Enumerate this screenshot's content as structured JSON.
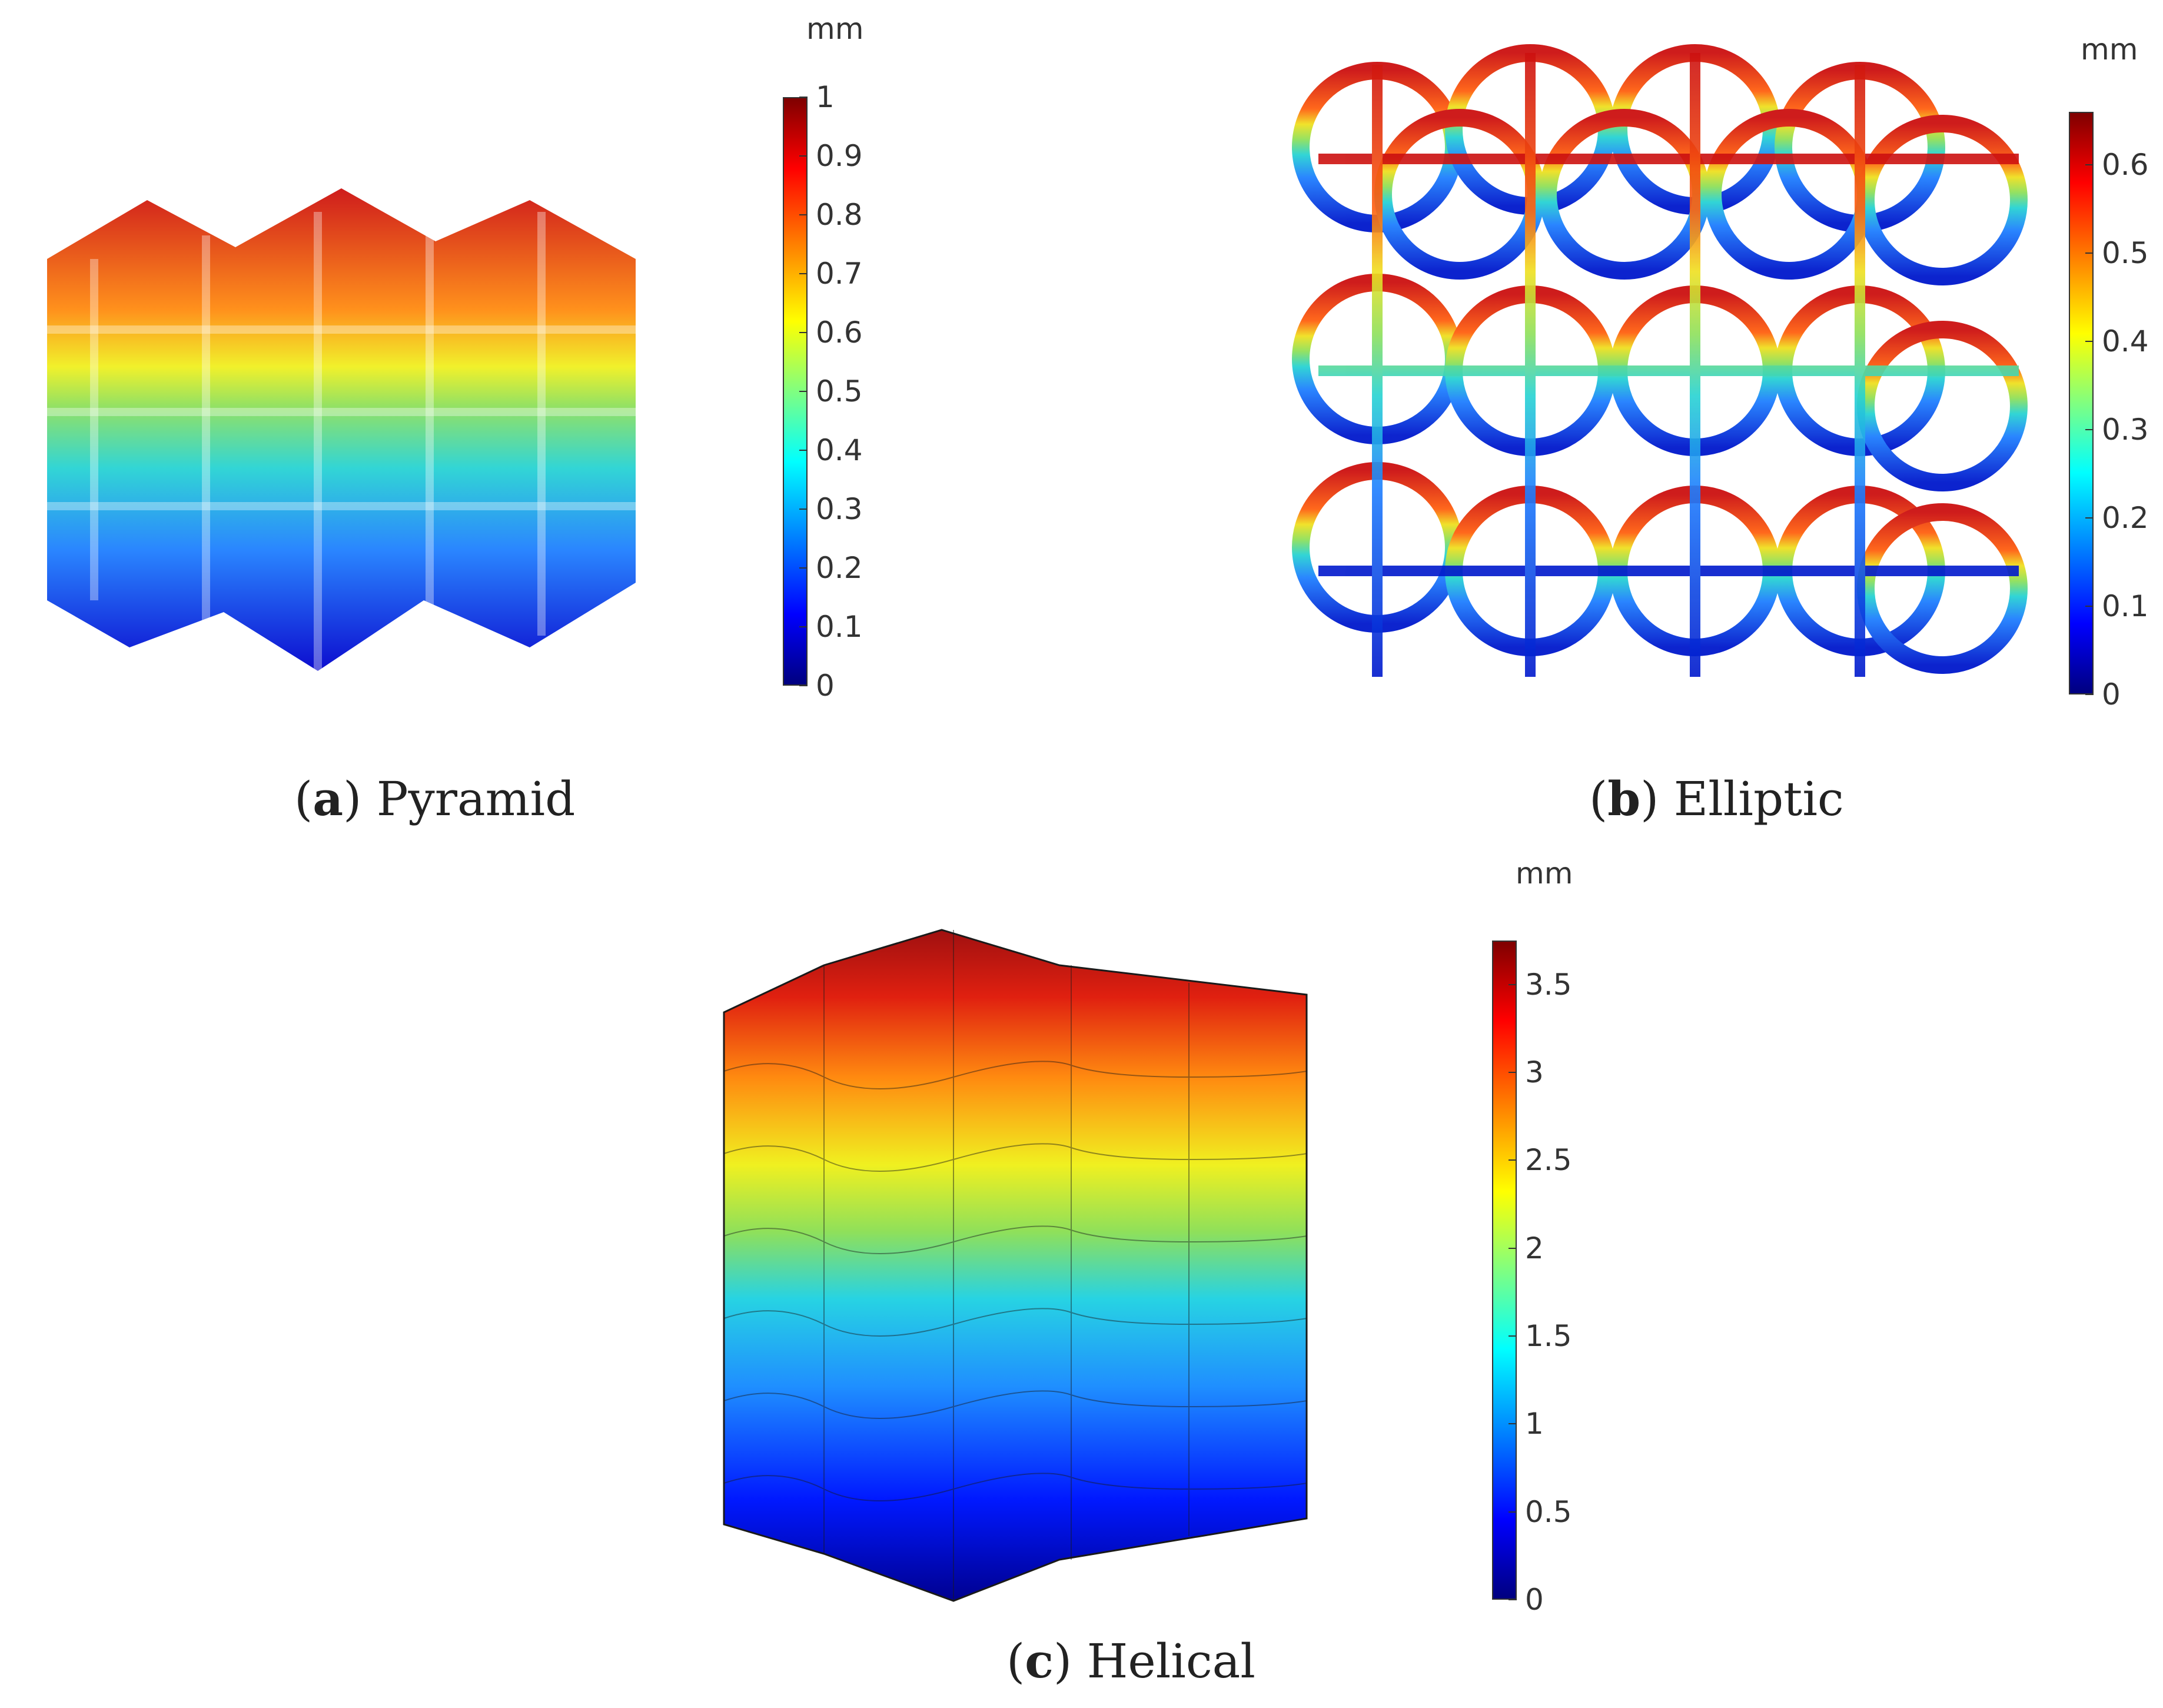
{
  "panels": {
    "a": {
      "unit": "mm",
      "ticks": [
        "0",
        "0.1",
        "0.2",
        "0.3",
        "0.4",
        "0.5",
        "0.6",
        "0.7",
        "0.8",
        "0.9",
        "1"
      ],
      "tick_values": [
        0,
        0.1,
        0.2,
        0.3,
        0.4,
        0.5,
        0.6,
        0.7,
        0.8,
        0.9,
        1
      ],
      "range": [
        0,
        1
      ],
      "caption_letter": "a",
      "caption_text": "Pyramid"
    },
    "b": {
      "unit": "mm",
      "ticks": [
        "0",
        "0.1",
        "0.2",
        "0.3",
        "0.4",
        "0.5",
        "0.6"
      ],
      "tick_values": [
        0,
        0.1,
        0.2,
        0.3,
        0.4,
        0.5,
        0.6
      ],
      "range": [
        0,
        0.66
      ],
      "caption_letter": "b",
      "caption_text": "Elliptic"
    },
    "c": {
      "unit": "mm",
      "ticks": [
        "0",
        "0.5",
        "1",
        "1.5",
        "2",
        "2.5",
        "3",
        "3.5"
      ],
      "tick_values": [
        0,
        0.5,
        1,
        1.5,
        2,
        2.5,
        3,
        3.5
      ],
      "range": [
        0,
        3.75
      ],
      "caption_letter": "c",
      "caption_text": "Helical"
    }
  },
  "colors": {
    "jet": [
      "#00007f",
      "#0000ff",
      "#0080ff",
      "#00ffff",
      "#80ff80",
      "#ffff00",
      "#ff8000",
      "#ff0000",
      "#7f0000"
    ]
  }
}
